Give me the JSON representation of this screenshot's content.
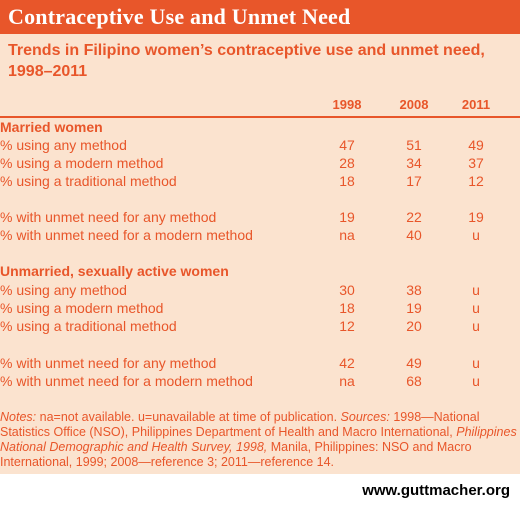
{
  "title": "Contraceptive Use and Unmet Need",
  "subtitle": "Trends in Filipino women’s contraceptive use and unmet need, 1998–2011",
  "colors": {
    "accent": "#e8562a",
    "panel": "#fbe3cf",
    "header_text": "#ffffff"
  },
  "chart_data": {
    "type": "table",
    "columns": [
      "1998",
      "2008",
      "2011"
    ],
    "sections": [
      {
        "name": "Married women",
        "rows": [
          {
            "label": "% using any method",
            "values": [
              "47",
              "51",
              "49"
            ]
          },
          {
            "label": "% using a modern method",
            "values": [
              "28",
              "34",
              "37"
            ]
          },
          {
            "label": "% using a traditional method",
            "values": [
              "18",
              "17",
              "12"
            ]
          },
          {
            "label": "% with unmet need for any method",
            "values": [
              "19",
              "22",
              "19"
            ]
          },
          {
            "label": "% with unmet need for a modern method",
            "values": [
              "na",
              "40",
              "u"
            ]
          }
        ]
      },
      {
        "name": "Unmarried, sexually active women",
        "rows": [
          {
            "label": "% using any method",
            "values": [
              "30",
              "38",
              "u"
            ]
          },
          {
            "label": "% using a modern method",
            "values": [
              "18",
              "19",
              "u"
            ]
          },
          {
            "label": "% using a traditional method",
            "values": [
              "12",
              "20",
              "u"
            ]
          },
          {
            "label": "% with unmet need for any method",
            "values": [
              "42",
              "49",
              "u"
            ]
          },
          {
            "label": "% with unmet need for a modern method",
            "values": [
              "na",
              "68",
              "u"
            ]
          }
        ]
      }
    ]
  },
  "notes": {
    "notes_label": "Notes:",
    "notes_text": " na=not available. u=unavailable at time of publication. ",
    "sources_label": "Sources:",
    "sources_text_1": " 1998—National Statistics Office (NSO), Philippines Department of Health and Macro International, ",
    "sources_title": "Philippines National Demographic and Health Survey, 1998,",
    "sources_text_2": " Manila, Philippines: NSO and Macro International, 1999; 2008—reference 3; 2011—reference 14."
  },
  "footer_url": "www.guttmacher.org"
}
